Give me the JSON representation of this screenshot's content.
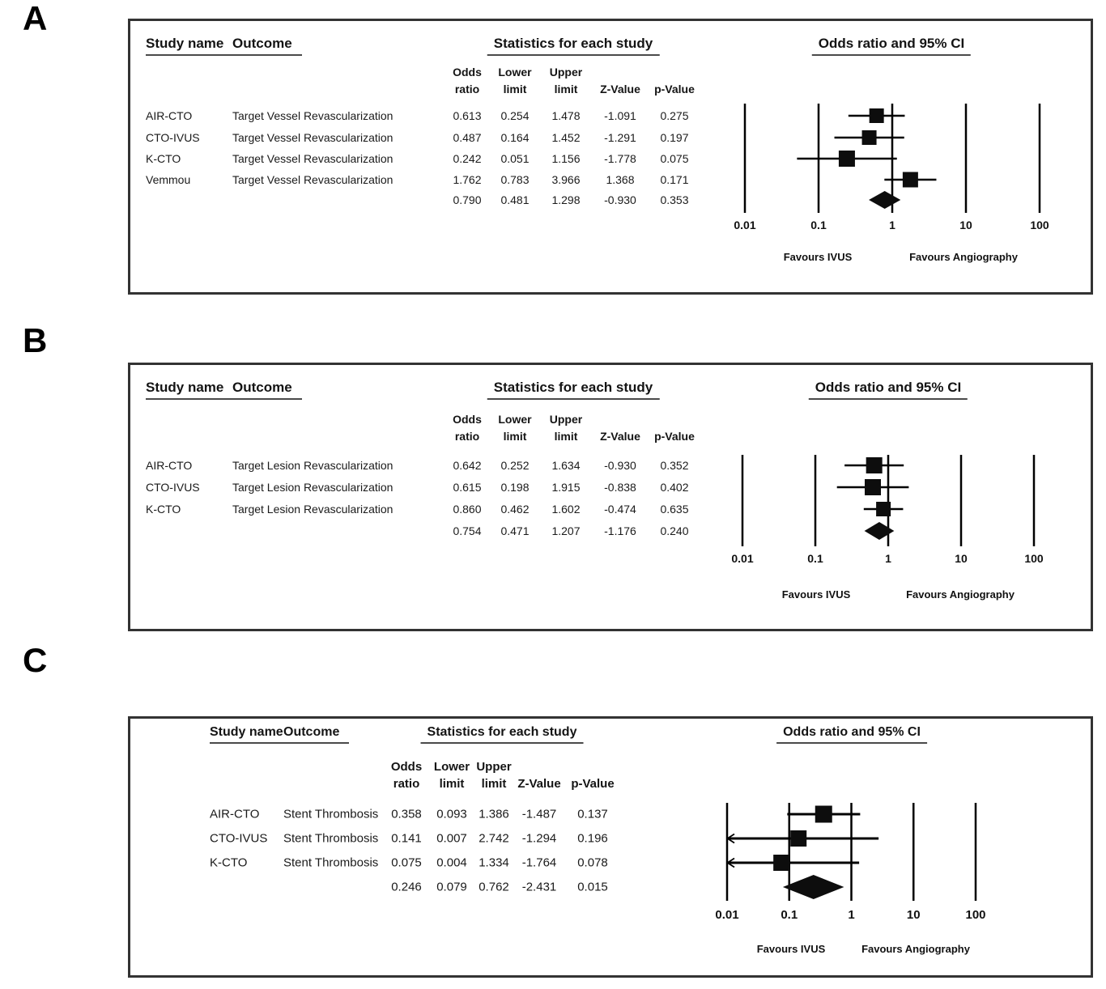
{
  "chart_data": [
    {
      "type": "forest",
      "panel_label": "A",
      "column_group_title": "Statistics for each study",
      "plot_title": "Odds ratio and 95% CI",
      "col_headers": {
        "study": "Study name",
        "outcome": "Outcome",
        "or": [
          "Odds",
          "ratio"
        ],
        "lower": [
          "Lower",
          "limit"
        ],
        "upper": [
          "Upper",
          "limit"
        ],
        "z": "Z-Value",
        "p": "p-Value"
      },
      "rows": [
        {
          "study": "AIR-CTO",
          "outcome": "Target Vessel Revascularization",
          "or": "0.613",
          "lower": "0.254",
          "upper": "1.478",
          "z": "-1.091",
          "p": "0.275"
        },
        {
          "study": "CTO-IVUS",
          "outcome": "Target Vessel Revascularization",
          "or": "0.487",
          "lower": "0.164",
          "upper": "1.452",
          "z": "-1.291",
          "p": "0.197"
        },
        {
          "study": "K-CTO",
          "outcome": "Target Vessel Revascularization",
          "or": "0.242",
          "lower": "0.051",
          "upper": "1.156",
          "z": "-1.778",
          "p": "0.075"
        },
        {
          "study": "Vemmou",
          "outcome": "Target Vessel Revascularization",
          "or": "1.762",
          "lower": "0.783",
          "upper": "3.966",
          "z": "1.368",
          "p": "0.171"
        }
      ],
      "summary": {
        "or": "0.790",
        "lower": "0.481",
        "upper": "1.298",
        "z": "-0.930",
        "p": "0.353"
      },
      "x_axis": {
        "scale": "log",
        "min": 0.01,
        "max": 100,
        "ticks": [
          "0.01",
          "0.1",
          "1",
          "10",
          "100"
        ]
      },
      "footer_left": "Favours IVUS",
      "footer_right": "Favours Angiography"
    },
    {
      "type": "forest",
      "panel_label": "B",
      "column_group_title": "Statistics for each study",
      "plot_title": "Odds ratio and 95% CI",
      "col_headers": {
        "study": "Study name",
        "outcome": "Outcome",
        "or": [
          "Odds",
          "ratio"
        ],
        "lower": [
          "Lower",
          "limit"
        ],
        "upper": [
          "Upper",
          "limit"
        ],
        "z": "Z-Value",
        "p": "p-Value"
      },
      "rows": [
        {
          "study": "AIR-CTO",
          "outcome": "Target Lesion Revascularization",
          "or": "0.642",
          "lower": "0.252",
          "upper": "1.634",
          "z": "-0.930",
          "p": "0.352"
        },
        {
          "study": "CTO-IVUS",
          "outcome": "Target Lesion Revascularization",
          "or": "0.615",
          "lower": "0.198",
          "upper": "1.915",
          "z": "-0.838",
          "p": "0.402"
        },
        {
          "study": "K-CTO",
          "outcome": "Target Lesion Revascularization",
          "or": "0.860",
          "lower": "0.462",
          "upper": "1.602",
          "z": "-0.474",
          "p": "0.635"
        }
      ],
      "summary": {
        "or": "0.754",
        "lower": "0.471",
        "upper": "1.207",
        "z": "-1.176",
        "p": "0.240"
      },
      "x_axis": {
        "scale": "log",
        "min": 0.01,
        "max": 100,
        "ticks": [
          "0.01",
          "0.1",
          "1",
          "10",
          "100"
        ]
      },
      "footer_left": "Favours IVUS",
      "footer_right": "Favours Angiography"
    },
    {
      "type": "forest",
      "panel_label": "C",
      "column_group_title": "Statistics for each study",
      "plot_title": "Odds ratio and 95% CI",
      "col_headers": {
        "study": "Study name",
        "outcome": "Outcome",
        "or": [
          "Odds",
          "ratio"
        ],
        "lower": [
          "Lower",
          "limit"
        ],
        "upper": [
          "Upper",
          "limit"
        ],
        "z": "Z-Value",
        "p": "p-Value"
      },
      "rows": [
        {
          "study": "AIR-CTO",
          "outcome": "Stent Thrombosis",
          "or": "0.358",
          "lower": "0.093",
          "upper": "1.386",
          "z": "-1.487",
          "p": "0.137"
        },
        {
          "study": "CTO-IVUS",
          "outcome": "Stent Thrombosis",
          "or": "0.141",
          "lower": "0.007",
          "upper": "2.742",
          "z": "-1.294",
          "p": "0.196"
        },
        {
          "study": "K-CTO",
          "outcome": "Stent Thrombosis",
          "or": "0.075",
          "lower": "0.004",
          "upper": "1.334",
          "z": "-1.764",
          "p": "0.078"
        }
      ],
      "summary": {
        "or": "0.246",
        "lower": "0.079",
        "upper": "0.762",
        "z": "-2.431",
        "p": "0.015"
      },
      "x_axis": {
        "scale": "log",
        "min": 0.01,
        "max": 100,
        "ticks": [
          "0.01",
          "0.1",
          "1",
          "10",
          "100"
        ]
      },
      "footer_left": "Favours IVUS",
      "footer_right": "Favours Angiography"
    }
  ]
}
